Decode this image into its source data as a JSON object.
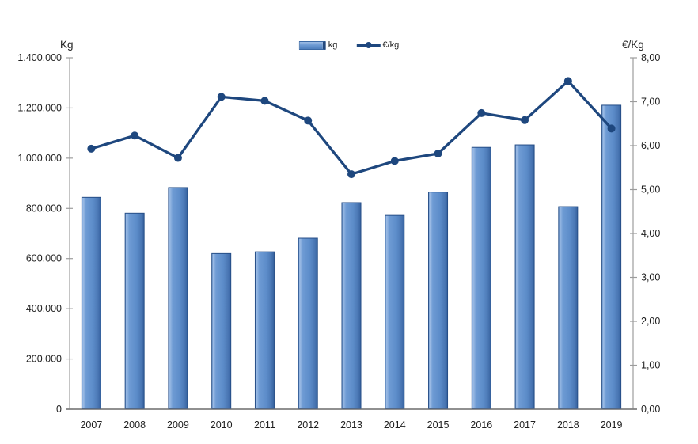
{
  "chart_data": {
    "type": "combo",
    "title": "",
    "categories": [
      "2007",
      "2008",
      "2009",
      "2010",
      "2011",
      "2012",
      "2013",
      "2014",
      "2015",
      "2016",
      "2017",
      "2018",
      "2019"
    ],
    "series": [
      {
        "name": "kg",
        "type": "bar",
        "axis": "left",
        "values": [
          844000,
          781000,
          883000,
          620000,
          627000,
          681000,
          823000,
          772000,
          865000,
          1043000,
          1053000,
          807000,
          1211000
        ]
      },
      {
        "name": "€/kg",
        "type": "line",
        "axis": "right",
        "values": [
          5.93,
          6.23,
          5.72,
          7.11,
          7.02,
          6.57,
          5.35,
          5.65,
          5.82,
          6.74,
          6.58,
          7.47,
          6.39
        ]
      }
    ],
    "left_axis": {
      "title": "Kg",
      "min": 0,
      "max": 1400000,
      "tick_interval": 200000,
      "tick_labels": [
        "1.400.000",
        "1.200.000",
        "1.000.000",
        "800.000",
        "600.000",
        "400.000",
        "200.000",
        "0"
      ]
    },
    "right_axis": {
      "title": "€/Kg",
      "min": 0,
      "max": 8,
      "tick_interval": 1,
      "tick_labels": [
        "8,00",
        "7,00",
        "6,00",
        "5,00",
        "4,00",
        "3,00",
        "2,00",
        "1,00",
        "0,00"
      ]
    },
    "legend": {
      "position": "top",
      "entries": [
        "kg",
        "€/kg"
      ]
    },
    "grid": false
  },
  "colors": {
    "bar_fill": "#5c8cc9",
    "bar_highlight": "#9dbce5",
    "bar_mid": "#6e9bd4",
    "bar_shade": "#4a77b4",
    "bar_edge": "#35619e",
    "bar_stroke": "#264e87",
    "line": "#1e477e",
    "axis_side": "#9c9c9c",
    "axis_bottom": "#808080",
    "text": "#1f1f1f"
  }
}
